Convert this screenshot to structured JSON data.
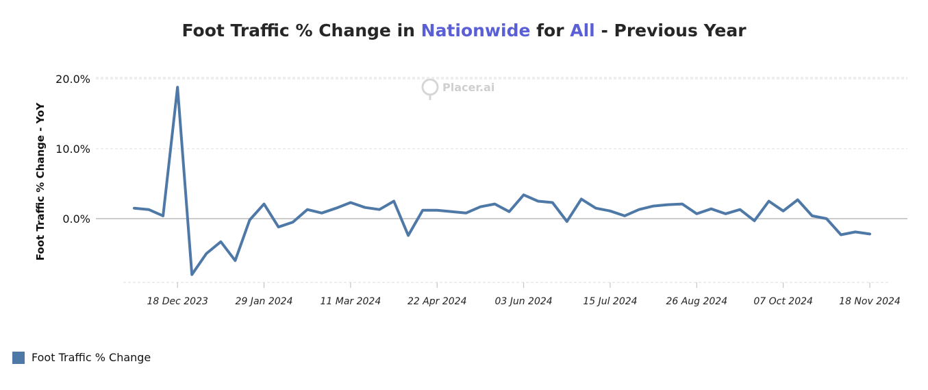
{
  "title": {
    "part1": "Foot Traffic % Change in ",
    "highlight1": "Nationwide",
    "part2": " for ",
    "highlight2": "All",
    "part3": "  - Previous Year"
  },
  "watermark": "Placer.ai",
  "colors": {
    "series": "#4e79a7",
    "highlight": "#5b5fd6",
    "grid": "#dddddd",
    "zero": "#cccccc"
  },
  "chart_data": {
    "type": "line",
    "ylabel": "Foot Traffic % Change - YoY",
    "yticks": [
      "20.0%",
      "10.0%",
      "0.0%"
    ],
    "ytick_values": [
      20,
      10,
      0
    ],
    "ylim": [
      -10.5,
      21
    ],
    "grid": true,
    "legend_position": "bottom-left",
    "xticks": [
      "18 Dec 2023",
      "29 Jan 2024",
      "11 Mar 2024",
      "22 Apr 2024",
      "03 Jun 2024",
      "15 Jul 2024",
      "26 Aug 2024",
      "07 Oct 2024",
      "18 Nov 2024"
    ],
    "xtick_indices": [
      3,
      9,
      15,
      21,
      27,
      33,
      39,
      45,
      51
    ],
    "series": [
      {
        "name": "Foot Traffic % Change",
        "values": [
          1.5,
          1.3,
          0.4,
          18.8,
          -8.0,
          -5.0,
          -3.3,
          -6.0,
          -0.2,
          2.1,
          -1.2,
          -0.5,
          1.3,
          0.8,
          1.5,
          2.3,
          1.6,
          1.3,
          2.5,
          -2.4,
          1.2,
          1.2,
          1.0,
          0.8,
          1.7,
          2.1,
          1.0,
          3.4,
          2.5,
          2.3,
          -0.4,
          2.8,
          1.5,
          1.1,
          0.4,
          1.3,
          1.8,
          2.0,
          2.1,
          0.7,
          1.4,
          0.7,
          1.3,
          -0.3,
          2.5,
          1.1,
          2.7,
          0.4,
          0.0,
          -2.3,
          -1.9,
          -2.2
        ]
      }
    ]
  }
}
